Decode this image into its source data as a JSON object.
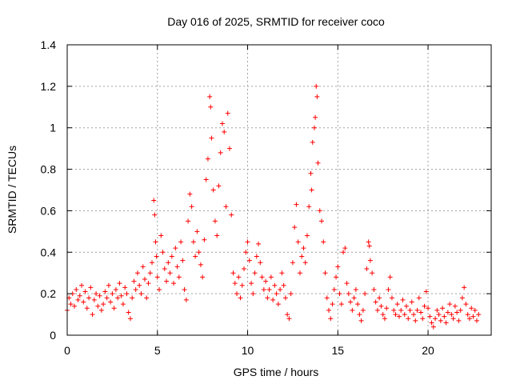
{
  "chart_data": {
    "type": "scatter",
    "title": "Day 016 of 2025, SRMTID for receiver coco",
    "xlabel": "GPS time / hours",
    "ylabel": "SRMTID / TECUs",
    "xlim": [
      0,
      23.5
    ],
    "ylim": [
      0,
      1.4
    ],
    "xticks": [
      0,
      5,
      10,
      15,
      20
    ],
    "xtick_labels": [
      "0",
      "5",
      "10",
      "15",
      "20"
    ],
    "yticks": [
      0,
      0.2,
      0.4,
      0.6,
      0.8,
      1.0,
      1.2,
      1.4
    ],
    "ytick_labels": [
      "0",
      "0.2",
      "0.4",
      "0.6",
      "0.8",
      "1",
      "1.2",
      "1.4"
    ],
    "grid": true,
    "marker": "plus",
    "color": "#ff0000",
    "series": [
      {
        "name": "SRMTID",
        "points": [
          [
            0.0,
            0.12
          ],
          [
            0.1,
            0.18
          ],
          [
            0.2,
            0.15
          ],
          [
            0.3,
            0.2
          ],
          [
            0.4,
            0.14
          ],
          [
            0.5,
            0.22
          ],
          [
            0.6,
            0.17
          ],
          [
            0.7,
            0.19
          ],
          [
            0.8,
            0.24
          ],
          [
            0.9,
            0.16
          ],
          [
            1.0,
            0.21
          ],
          [
            1.1,
            0.13
          ],
          [
            1.2,
            0.18
          ],
          [
            1.3,
            0.23
          ],
          [
            1.4,
            0.1
          ],
          [
            1.5,
            0.17
          ],
          [
            1.6,
            0.2
          ],
          [
            1.7,
            0.14
          ],
          [
            1.8,
            0.19
          ],
          [
            1.9,
            0.12
          ],
          [
            2.0,
            0.15
          ],
          [
            2.1,
            0.21
          ],
          [
            2.2,
            0.18
          ],
          [
            2.3,
            0.24
          ],
          [
            2.4,
            0.16
          ],
          [
            2.5,
            0.2
          ],
          [
            2.6,
            0.13
          ],
          [
            2.7,
            0.22
          ],
          [
            2.8,
            0.18
          ],
          [
            2.9,
            0.25
          ],
          [
            3.0,
            0.19
          ],
          [
            3.1,
            0.15
          ],
          [
            3.2,
            0.23
          ],
          [
            3.3,
            0.2
          ],
          [
            3.4,
            0.11
          ],
          [
            3.5,
            0.08
          ],
          [
            3.6,
            0.18
          ],
          [
            3.7,
            0.26
          ],
          [
            3.8,
            0.22
          ],
          [
            3.9,
            0.3
          ],
          [
            4.0,
            0.24
          ],
          [
            4.1,
            0.2
          ],
          [
            4.2,
            0.33
          ],
          [
            4.3,
            0.27
          ],
          [
            4.4,
            0.18
          ],
          [
            4.5,
            0.25
          ],
          [
            4.6,
            0.3
          ],
          [
            4.7,
            0.35
          ],
          [
            4.8,
            0.65
          ],
          [
            4.85,
            0.58
          ],
          [
            4.9,
            0.45
          ],
          [
            4.95,
            0.38
          ],
          [
            5.0,
            0.28
          ],
          [
            5.1,
            0.22
          ],
          [
            5.2,
            0.48
          ],
          [
            5.3,
            0.4
          ],
          [
            5.4,
            0.32
          ],
          [
            5.5,
            0.26
          ],
          [
            5.6,
            0.35
          ],
          [
            5.7,
            0.3
          ],
          [
            5.8,
            0.38
          ],
          [
            5.9,
            0.25
          ],
          [
            6.0,
            0.42
          ],
          [
            6.1,
            0.33
          ],
          [
            6.2,
            0.28
          ],
          [
            6.3,
            0.45
          ],
          [
            6.4,
            0.36
          ],
          [
            6.5,
            0.22
          ],
          [
            6.6,
            0.17
          ],
          [
            6.7,
            0.55
          ],
          [
            6.8,
            0.68
          ],
          [
            6.9,
            0.62
          ],
          [
            7.0,
            0.45
          ],
          [
            7.1,
            0.38
          ],
          [
            7.2,
            0.5
          ],
          [
            7.3,
            0.4
          ],
          [
            7.4,
            0.34
          ],
          [
            7.5,
            0.28
          ],
          [
            7.6,
            0.46
          ],
          [
            7.7,
            0.75
          ],
          [
            7.8,
            0.85
          ],
          [
            7.9,
            1.15
          ],
          [
            7.95,
            1.1
          ],
          [
            8.0,
            0.95
          ],
          [
            8.1,
            0.7
          ],
          [
            8.2,
            0.55
          ],
          [
            8.3,
            0.48
          ],
          [
            8.4,
            0.72
          ],
          [
            8.5,
            0.88
          ],
          [
            8.6,
            1.02
          ],
          [
            8.7,
            0.98
          ],
          [
            8.8,
            0.62
          ],
          [
            8.9,
            1.07
          ],
          [
            9.0,
            0.9
          ],
          [
            9.1,
            0.58
          ],
          [
            9.2,
            0.3
          ],
          [
            9.3,
            0.25
          ],
          [
            9.4,
            0.2
          ],
          [
            9.5,
            0.28
          ],
          [
            9.6,
            0.18
          ],
          [
            9.7,
            0.24
          ],
          [
            9.8,
            0.32
          ],
          [
            9.9,
            0.4
          ],
          [
            10.0,
            0.45
          ],
          [
            10.1,
            0.36
          ],
          [
            10.2,
            0.25
          ],
          [
            10.3,
            0.2
          ],
          [
            10.4,
            0.3
          ],
          [
            10.5,
            0.38
          ],
          [
            10.6,
            0.44
          ],
          [
            10.7,
            0.35
          ],
          [
            10.8,
            0.28
          ],
          [
            10.9,
            0.22
          ],
          [
            11.0,
            0.26
          ],
          [
            11.1,
            0.18
          ],
          [
            11.2,
            0.22
          ],
          [
            11.3,
            0.28
          ],
          [
            11.4,
            0.17
          ],
          [
            11.5,
            0.24
          ],
          [
            11.6,
            0.2
          ],
          [
            11.7,
            0.15
          ],
          [
            11.8,
            0.22
          ],
          [
            11.9,
            0.3
          ],
          [
            12.0,
            0.24
          ],
          [
            12.1,
            0.18
          ],
          [
            12.2,
            0.1
          ],
          [
            12.3,
            0.08
          ],
          [
            12.4,
            0.2
          ],
          [
            12.5,
            0.35
          ],
          [
            12.6,
            0.52
          ],
          [
            12.7,
            0.63
          ],
          [
            12.8,
            0.45
          ],
          [
            12.9,
            0.3
          ],
          [
            13.0,
            0.38
          ],
          [
            13.1,
            0.42
          ],
          [
            13.2,
            0.35
          ],
          [
            13.3,
            0.48
          ],
          [
            13.4,
            0.62
          ],
          [
            13.5,
            0.78
          ],
          [
            13.55,
            0.7
          ],
          [
            13.6,
            0.93
          ],
          [
            13.7,
            1.0
          ],
          [
            13.75,
            1.05
          ],
          [
            13.8,
            1.2
          ],
          [
            13.85,
            1.15
          ],
          [
            13.9,
            0.83
          ],
          [
            14.0,
            0.6
          ],
          [
            14.1,
            0.55
          ],
          [
            14.2,
            0.45
          ],
          [
            14.3,
            0.3
          ],
          [
            14.4,
            0.18
          ],
          [
            14.5,
            0.12
          ],
          [
            14.6,
            0.08
          ],
          [
            14.7,
            0.15
          ],
          [
            14.8,
            0.22
          ],
          [
            14.9,
            0.28
          ],
          [
            15.0,
            0.33
          ],
          [
            15.1,
            0.2
          ],
          [
            15.2,
            0.15
          ],
          [
            15.3,
            0.4
          ],
          [
            15.4,
            0.42
          ],
          [
            15.5,
            0.25
          ],
          [
            15.6,
            0.2
          ],
          [
            15.7,
            0.16
          ],
          [
            15.8,
            0.12
          ],
          [
            15.9,
            0.18
          ],
          [
            16.0,
            0.22
          ],
          [
            16.1,
            0.15
          ],
          [
            16.2,
            0.1
          ],
          [
            16.3,
            0.07
          ],
          [
            16.4,
            0.12
          ],
          [
            16.5,
            0.2
          ],
          [
            16.6,
            0.32
          ],
          [
            16.7,
            0.45
          ],
          [
            16.75,
            0.43
          ],
          [
            16.8,
            0.36
          ],
          [
            16.9,
            0.3
          ],
          [
            17.0,
            0.22
          ],
          [
            17.1,
            0.16
          ],
          [
            17.2,
            0.12
          ],
          [
            17.3,
            0.18
          ],
          [
            17.4,
            0.14
          ],
          [
            17.5,
            0.1
          ],
          [
            17.6,
            0.08
          ],
          [
            17.7,
            0.13
          ],
          [
            17.8,
            0.22
          ],
          [
            17.9,
            0.28
          ],
          [
            18.0,
            0.18
          ],
          [
            18.1,
            0.12
          ],
          [
            18.2,
            0.1
          ],
          [
            18.3,
            0.15
          ],
          [
            18.4,
            0.09
          ],
          [
            18.5,
            0.12
          ],
          [
            18.6,
            0.17
          ],
          [
            18.7,
            0.1
          ],
          [
            18.8,
            0.14
          ],
          [
            18.9,
            0.08
          ],
          [
            19.0,
            0.12
          ],
          [
            19.1,
            0.16
          ],
          [
            19.2,
            0.1
          ],
          [
            19.3,
            0.07
          ],
          [
            19.4,
            0.12
          ],
          [
            19.5,
            0.18
          ],
          [
            19.6,
            0.11
          ],
          [
            19.7,
            0.08
          ],
          [
            19.8,
            0.14
          ],
          [
            19.9,
            0.21
          ],
          [
            20.0,
            0.13
          ],
          [
            20.1,
            0.09
          ],
          [
            20.2,
            0.06
          ],
          [
            20.3,
            0.04
          ],
          [
            20.4,
            0.08
          ],
          [
            20.5,
            0.12
          ],
          [
            20.6,
            0.1
          ],
          [
            20.7,
            0.07
          ],
          [
            20.8,
            0.13
          ],
          [
            20.9,
            0.09
          ],
          [
            21.0,
            0.06
          ],
          [
            21.1,
            0.11
          ],
          [
            21.2,
            0.15
          ],
          [
            21.3,
            0.1
          ],
          [
            21.4,
            0.08
          ],
          [
            21.5,
            0.14
          ],
          [
            21.6,
            0.11
          ],
          [
            21.7,
            0.07
          ],
          [
            21.8,
            0.12
          ],
          [
            21.9,
            0.18
          ],
          [
            22.0,
            0.23
          ],
          [
            22.1,
            0.15
          ],
          [
            22.2,
            0.1
          ],
          [
            22.3,
            0.08
          ],
          [
            22.4,
            0.13
          ],
          [
            22.5,
            0.09
          ],
          [
            22.6,
            0.12
          ],
          [
            22.7,
            0.07
          ],
          [
            22.8,
            0.1
          ]
        ]
      }
    ]
  }
}
